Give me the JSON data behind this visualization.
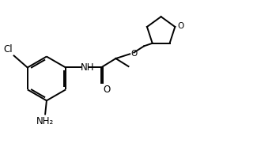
{
  "background_color": "#ffffff",
  "line_color": "#000000",
  "text_color": "#000000",
  "label_Cl": "Cl",
  "label_NH": "NH",
  "label_O_carbonyl": "O",
  "label_O_ether": "O",
  "label_O_ring": "O",
  "label_NH2": "NH₂",
  "line_width": 1.4,
  "font_size": 8.5,
  "figsize": [
    3.25,
    1.81
  ],
  "dpi": 100
}
